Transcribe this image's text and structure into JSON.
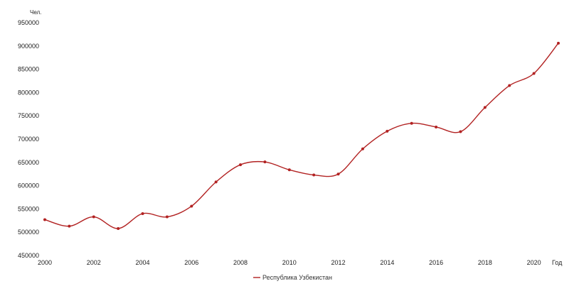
{
  "chart_data": {
    "type": "line",
    "ylabel": "Чел.",
    "xlabel": "Год",
    "ylim": [
      450000,
      950000
    ],
    "y_ticks": [
      450000,
      500000,
      550000,
      600000,
      650000,
      700000,
      750000,
      800000,
      850000,
      900000,
      950000
    ],
    "xlim": [
      2000,
      2021
    ],
    "x_ticks": [
      2000,
      2002,
      2004,
      2006,
      2008,
      2010,
      2012,
      2014,
      2016,
      2018,
      2020
    ],
    "grid": false,
    "legend_position": "bottom-center",
    "series": [
      {
        "name": "Республика Узбекистан",
        "color": "#b22222",
        "x": [
          2000,
          2001,
          2002,
          2003,
          2004,
          2005,
          2006,
          2007,
          2008,
          2009,
          2010,
          2011,
          2012,
          2013,
          2014,
          2015,
          2016,
          2017,
          2018,
          2019,
          2020,
          2021
        ],
        "values": [
          527000,
          513000,
          533000,
          508000,
          540000,
          533000,
          556000,
          608000,
          645000,
          651000,
          634000,
          623000,
          625000,
          679000,
          717000,
          734000,
          726000,
          716000,
          768000,
          815000,
          841000,
          906000
        ]
      }
    ]
  }
}
